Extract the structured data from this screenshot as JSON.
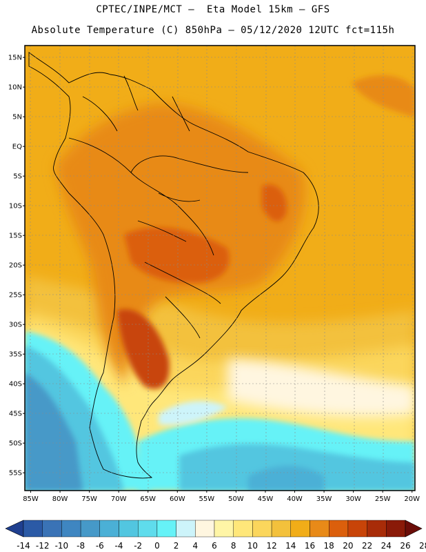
{
  "header": {
    "line1": "CPTEC/INPE/MCT –  Eta Model 15km – GFS",
    "line2": "Absolute Temperature (C) 850hPa – 05/12/2020 12UTC fct=115h"
  },
  "map": {
    "lon_range": [
      -86,
      -19.5
    ],
    "lat_range": [
      -58,
      17
    ],
    "lat_labels": [
      "15N",
      "10N",
      "5N",
      "EQ",
      "5S",
      "10S",
      "15S",
      "20S",
      "25S",
      "30S",
      "35S",
      "40S",
      "45S",
      "50S",
      "55S"
    ],
    "lat_values": [
      15,
      10,
      5,
      0,
      -5,
      -10,
      -15,
      -20,
      -25,
      -30,
      -35,
      -40,
      -45,
      -50,
      -55
    ],
    "lon_labels": [
      "85W",
      "80W",
      "75W",
      "70W",
      "65W",
      "60W",
      "55W",
      "50W",
      "45W",
      "40W",
      "35W",
      "30W",
      "25W",
      "20W"
    ],
    "lon_values": [
      -85,
      -80,
      -75,
      -70,
      -65,
      -60,
      -55,
      -50,
      -45,
      -40,
      -35,
      -30,
      -25,
      -20
    ],
    "grid": "dotted"
  },
  "colorbar": {
    "labels": [
      "-14",
      "-12",
      "-10",
      "-8",
      "-6",
      "-4",
      "-2",
      "0",
      "2",
      "4",
      "6",
      "8",
      "10",
      "12",
      "14",
      "16",
      "18",
      "20",
      "22",
      "24",
      "26",
      "28"
    ],
    "colors": [
      "#1f3f8f",
      "#2b5aa6",
      "#3a73b6",
      "#3f86c1",
      "#4699c8",
      "#4bb0d6",
      "#52c6e0",
      "#5fdcec",
      "#66f2f7",
      "#cdf4fa",
      "#fff6e0",
      "#fff5a6",
      "#ffe77a",
      "#fbd65c",
      "#f3c13c",
      "#f1ad18",
      "#e88a18",
      "#db5f0c",
      "#c84408",
      "#a82c08",
      "#8a1a08",
      "#6b0d08"
    ]
  }
}
